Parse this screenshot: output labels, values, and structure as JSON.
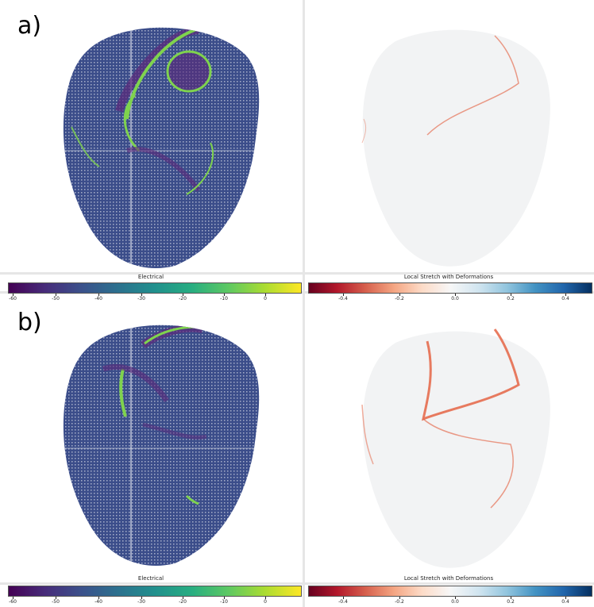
{
  "panels": [
    {
      "label": "a)",
      "left_colorbar": {
        "title": "Electrical",
        "ticks": [
          "-60",
          "-50",
          "-40",
          "-30",
          "-20",
          "-10",
          "0"
        ]
      },
      "right_colorbar": {
        "title": "Local Stretch with Deformations",
        "ticks": [
          "-0.4",
          "-0.2",
          "0.0",
          "0.2",
          "0.4"
        ]
      }
    },
    {
      "label": "b)",
      "left_colorbar": {
        "title": "Electrical",
        "ticks": [
          "-60",
          "-50",
          "-40",
          "-30",
          "-20",
          "-10",
          "0"
        ]
      },
      "right_colorbar": {
        "title": "Local Stretch with Deformations",
        "ticks": [
          "-0.4",
          "-0.2",
          "0.0",
          "0.2",
          "0.4"
        ]
      }
    }
  ],
  "colors": {
    "mesh_blue": "#3b4d8a",
    "activation_green": "#7fd34e",
    "activation_purple": "#5b2a7a",
    "stretch_red": "#e35b3a",
    "stretch_bg": "#f2f3f4"
  }
}
